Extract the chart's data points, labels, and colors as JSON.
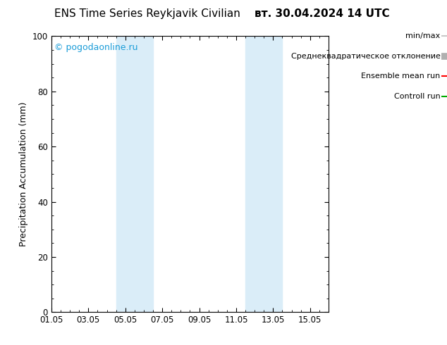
{
  "title_left": "ENS Time Series Reykjavik Civilian",
  "title_right": "вт. 30.04.2024 14 UTC",
  "ylabel": "Precipitation Accumulation (mm)",
  "ylim": [
    0,
    100
  ],
  "xlim_days": [
    0,
    15
  ],
  "xtick_labels": [
    "01.05",
    "03.05",
    "05.05",
    "07.05",
    "09.05",
    "11.05",
    "13.05",
    "15.05"
  ],
  "xtick_positions": [
    0,
    2,
    4,
    6,
    8,
    10,
    12,
    14
  ],
  "shaded_bands": [
    {
      "xmin": 3.5,
      "xmax": 5.5,
      "color": "#daedf8"
    },
    {
      "xmin": 10.5,
      "xmax": 12.5,
      "color": "#daedf8"
    }
  ],
  "watermark": "© pogodaonline.ru",
  "watermark_color": "#1a9cd8",
  "legend_items": [
    {
      "label": "min/max",
      "color": "#c8c8c8",
      "lw": 1.5
    },
    {
      "label": "Среднеквадратическое отклонение",
      "color": "#b0b0b0",
      "lw": 7
    },
    {
      "label": "Ensemble mean run",
      "color": "#ff0000",
      "lw": 1.5
    },
    {
      "label": "Controll run",
      "color": "#00aa00",
      "lw": 1.5
    }
  ],
  "bg_color": "#ffffff",
  "plot_bg_color": "#ffffff",
  "title_fontsize": 11,
  "axis_label_fontsize": 9,
  "tick_fontsize": 8.5,
  "legend_fontsize": 8,
  "watermark_fontsize": 9
}
